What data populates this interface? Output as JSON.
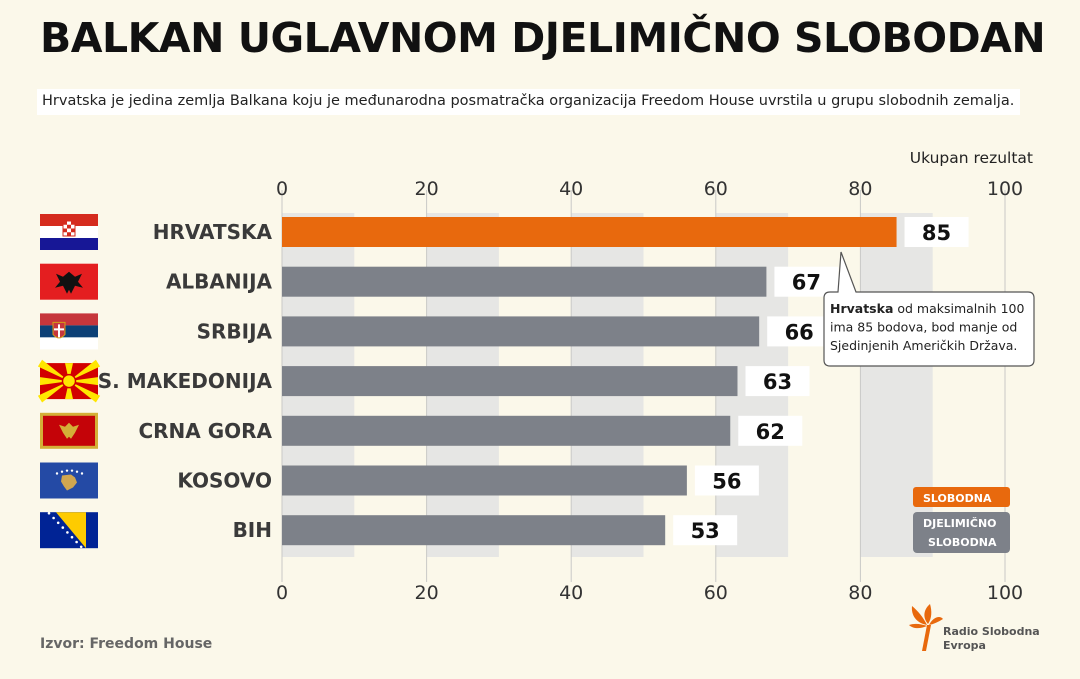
{
  "title": "BALKAN UGLAVNOM DJELIMIČNO SLOBODAN",
  "subtitle": "Hrvatska je jedina zemlja Balkana koju je međunarodna posmatračka organizacija Freedom House uvrstila u grupu slobodnih zemalja.",
  "source": "Izvor: Freedom House",
  "logo": {
    "line1": "Radio Slobodna",
    "line2": "Evropa"
  },
  "colors": {
    "free": "#e8690d",
    "partly_free": "#7d8189",
    "background": "#fbf8ea",
    "stripe": "#e6e6e4"
  },
  "chart_data": {
    "type": "bar",
    "orientation": "horizontal",
    "title": "BALKAN UGLAVNOM DJELIMIČNO SLOBODAN",
    "xlabel": "Ukupan rezultat",
    "xlim": [
      0,
      100
    ],
    "ticks": [
      "0",
      "20",
      "40",
      "60",
      "80",
      "100"
    ],
    "categories": [
      "HRVATSKA",
      "ALBANIJA",
      "SRBIJA",
      "S. MAKEDONIJA",
      "CRNA GORA",
      "KOSOVO",
      "BIH"
    ],
    "values": [
      85,
      67,
      66,
      63,
      62,
      56,
      53
    ],
    "status": [
      "free",
      "partly_free",
      "partly_free",
      "partly_free",
      "partly_free",
      "partly_free",
      "partly_free"
    ],
    "legend": [
      {
        "key": "free",
        "label": "SLOBODNA"
      },
      {
        "key": "partly_free",
        "label": "DJELIMIČNO SLOBODNA"
      }
    ],
    "legend_position": "bottom-right",
    "annotation": {
      "bold": "Hrvatska",
      "text": " od maksimalnih 100 ima 85 bodova, bod manje od Sjedinjenih Američkih Država."
    },
    "flags": [
      "croatia-flag",
      "albania-flag",
      "serbia-flag",
      "north-macedonia-flag",
      "montenegro-flag",
      "kosovo-flag",
      "bosnia-flag"
    ]
  }
}
